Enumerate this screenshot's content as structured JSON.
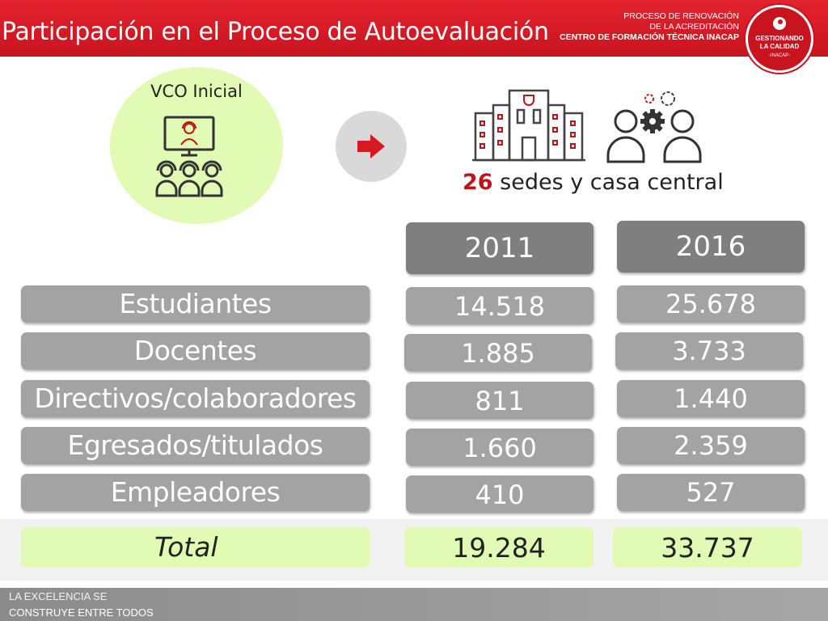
{
  "header": {
    "title": "Participación en el Proceso de Autoevaluación",
    "sub_line1": "PROCESO DE RENOVACIÓN",
    "sub_line2": "DE LA ACREDITACIÓN",
    "sub_line3": "CENTRO DE FORMACIÓN TÉCNICA INACAP",
    "seal_line1": "GESTIONANDO",
    "seal_line2": "LA CALIDAD",
    "seal_line3": "-INACAP-"
  },
  "vco": {
    "label": "VCO Inicial",
    "icon": "video-conference-icon"
  },
  "arrow": {
    "icon": "arrow-right-icon"
  },
  "campus": {
    "count": "26",
    "text": "sedes y casa central",
    "icons": [
      "campus-building-icon",
      "people-gears-icon"
    ]
  },
  "table": {
    "years": [
      "2011",
      "2016"
    ],
    "rows": [
      {
        "label": "Estudiantes",
        "v2011": "14.518",
        "v2016": "25.678"
      },
      {
        "label": "Docentes",
        "v2011": "1.885",
        "v2016": "3.733"
      },
      {
        "label": "Directivos/colaboradores",
        "v2011": "811",
        "v2016": "1.440"
      },
      {
        "label": "Egresados/titulados",
        "v2011": "1.660",
        "v2016": "2.359"
      },
      {
        "label": "Empleadores",
        "v2011": "410",
        "v2016": "527"
      }
    ],
    "total": {
      "label": "Total",
      "v2011": "19.284",
      "v2016": "33.737"
    }
  },
  "footer": {
    "line1": "LA EXCELENCIA SE",
    "line2": "CONSTRUYE ENTRE TODOS"
  },
  "colors": {
    "header_red": "#d71920",
    "accent_red": "#c0141b",
    "pill_gray": "#a3a3a3",
    "year_gray": "#7f7f7f",
    "total_green": "#e2fbb4"
  }
}
